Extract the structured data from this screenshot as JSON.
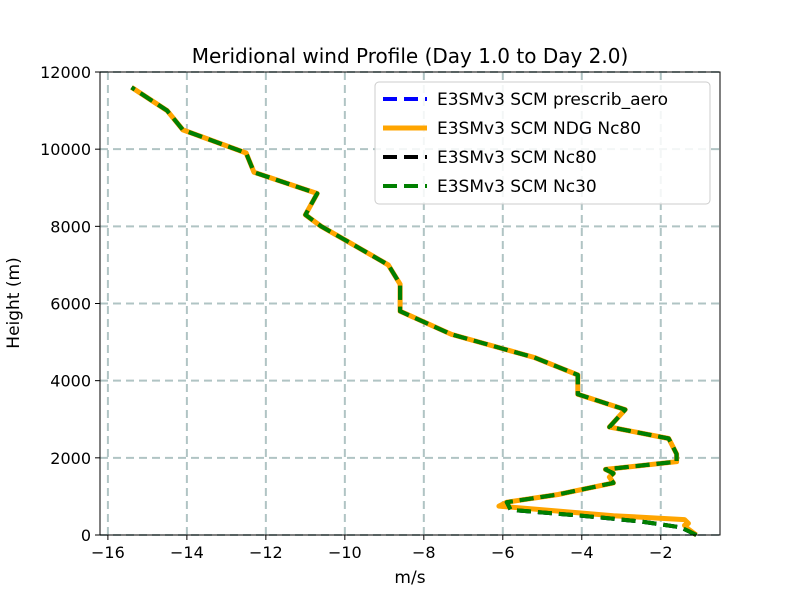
{
  "chart_data": {
    "type": "line",
    "title": "Meridional wind Profile (Day 1.0 to Day 2.0)",
    "xlabel": "m/s",
    "ylabel": "Height (m)",
    "xlim": [
      -16.2,
      -0.5
    ],
    "ylim": [
      0,
      12000
    ],
    "xticks": [
      -16,
      -14,
      -12,
      -10,
      -8,
      -6,
      -4,
      -2
    ],
    "yticks": [
      0,
      2000,
      4000,
      6000,
      8000,
      10000,
      12000
    ],
    "grid": true,
    "legend": "top-right",
    "series": [
      {
        "name": "E3SMv3 SCM prescrib_aero",
        "color": "#0000ff",
        "style": "dashed",
        "points": [
          [
            -1.1,
            0
          ],
          [
            -1.3,
            100
          ],
          [
            -1.5,
            200
          ],
          [
            -2.5,
            350
          ],
          [
            -4.0,
            500
          ],
          [
            -5.8,
            650
          ],
          [
            -5.9,
            850
          ],
          [
            -4.6,
            1050
          ],
          [
            -3.9,
            1200
          ],
          [
            -3.2,
            1350
          ],
          [
            -3.3,
            1500
          ],
          [
            -3.2,
            1600
          ],
          [
            -3.4,
            1700
          ],
          [
            -1.6,
            1900
          ],
          [
            -1.6,
            2100
          ],
          [
            -1.8,
            2500
          ],
          [
            -2.8,
            2700
          ],
          [
            -3.3,
            2800
          ],
          [
            -2.9,
            3250
          ],
          [
            -4.1,
            3650
          ],
          [
            -4.1,
            4150
          ],
          [
            -5.2,
            4600
          ],
          [
            -7.3,
            5200
          ],
          [
            -8.6,
            5800
          ],
          [
            -8.6,
            6500
          ],
          [
            -8.9,
            7000
          ],
          [
            -10.0,
            7650
          ],
          [
            -10.6,
            8000
          ],
          [
            -11.0,
            8300
          ],
          [
            -10.7,
            8850
          ],
          [
            -12.3,
            9400
          ],
          [
            -12.5,
            9900
          ],
          [
            -14.1,
            10500
          ],
          [
            -14.5,
            11000
          ],
          [
            -15.4,
            11600
          ]
        ]
      },
      {
        "name": "E3SMv3 SCM NDG Nc80",
        "color": "#ffa500",
        "style": "solid",
        "points": [
          [
            -1.1,
            0
          ],
          [
            -1.3,
            150
          ],
          [
            -1.4,
            250
          ],
          [
            -1.3,
            300
          ],
          [
            -1.4,
            400
          ],
          [
            -3.2,
            500
          ],
          [
            -6.1,
            750
          ],
          [
            -5.9,
            850
          ],
          [
            -4.6,
            1050
          ],
          [
            -3.9,
            1200
          ],
          [
            -3.2,
            1350
          ],
          [
            -3.3,
            1500
          ],
          [
            -3.2,
            1600
          ],
          [
            -3.4,
            1700
          ],
          [
            -1.6,
            1900
          ],
          [
            -1.6,
            2100
          ],
          [
            -1.8,
            2500
          ],
          [
            -2.8,
            2700
          ],
          [
            -3.3,
            2800
          ],
          [
            -2.9,
            3250
          ],
          [
            -4.1,
            3650
          ],
          [
            -4.1,
            4150
          ],
          [
            -5.2,
            4600
          ],
          [
            -7.3,
            5200
          ],
          [
            -8.6,
            5800
          ],
          [
            -8.6,
            6500
          ],
          [
            -8.9,
            7000
          ],
          [
            -10.0,
            7650
          ],
          [
            -10.6,
            8000
          ],
          [
            -11.0,
            8300
          ],
          [
            -10.7,
            8850
          ],
          [
            -12.3,
            9400
          ],
          [
            -12.5,
            9900
          ],
          [
            -14.1,
            10500
          ],
          [
            -14.5,
            11000
          ],
          [
            -15.4,
            11600
          ]
        ]
      },
      {
        "name": "E3SMv3 SCM Nc80",
        "color": "#000000",
        "style": "dashed",
        "points": [
          [
            -1.1,
            0
          ],
          [
            -1.3,
            100
          ],
          [
            -1.5,
            200
          ],
          [
            -2.5,
            350
          ],
          [
            -4.0,
            500
          ],
          [
            -5.8,
            650
          ],
          [
            -5.9,
            850
          ],
          [
            -4.6,
            1050
          ],
          [
            -3.9,
            1200
          ],
          [
            -3.2,
            1350
          ],
          [
            -3.3,
            1500
          ],
          [
            -3.2,
            1600
          ],
          [
            -3.4,
            1700
          ],
          [
            -1.6,
            1900
          ],
          [
            -1.6,
            2100
          ],
          [
            -1.8,
            2500
          ],
          [
            -2.8,
            2700
          ],
          [
            -3.3,
            2800
          ],
          [
            -2.9,
            3250
          ],
          [
            -4.1,
            3650
          ],
          [
            -4.1,
            4150
          ],
          [
            -5.2,
            4600
          ],
          [
            -7.3,
            5200
          ],
          [
            -8.6,
            5800
          ],
          [
            -8.6,
            6500
          ],
          [
            -8.9,
            7000
          ],
          [
            -10.0,
            7650
          ],
          [
            -10.6,
            8000
          ],
          [
            -11.0,
            8300
          ],
          [
            -10.7,
            8850
          ],
          [
            -12.3,
            9400
          ],
          [
            -12.5,
            9900
          ],
          [
            -14.1,
            10500
          ],
          [
            -14.5,
            11000
          ],
          [
            -15.4,
            11600
          ]
        ]
      },
      {
        "name": "E3SMv3 SCM Nc30",
        "color": "#008000",
        "style": "dashed",
        "points": [
          [
            -1.1,
            0
          ],
          [
            -1.3,
            100
          ],
          [
            -1.5,
            200
          ],
          [
            -2.5,
            350
          ],
          [
            -4.0,
            500
          ],
          [
            -5.8,
            650
          ],
          [
            -5.9,
            850
          ],
          [
            -4.6,
            1050
          ],
          [
            -3.9,
            1200
          ],
          [
            -3.2,
            1350
          ],
          [
            -3.3,
            1500
          ],
          [
            -3.2,
            1600
          ],
          [
            -3.4,
            1700
          ],
          [
            -1.6,
            1900
          ],
          [
            -1.6,
            2100
          ],
          [
            -1.8,
            2500
          ],
          [
            -2.8,
            2700
          ],
          [
            -3.3,
            2800
          ],
          [
            -2.9,
            3250
          ],
          [
            -4.1,
            3650
          ],
          [
            -4.1,
            4150
          ],
          [
            -5.2,
            4600
          ],
          [
            -7.3,
            5200
          ],
          [
            -8.6,
            5800
          ],
          [
            -8.6,
            6500
          ],
          [
            -8.9,
            7000
          ],
          [
            -10.0,
            7650
          ],
          [
            -10.6,
            8000
          ],
          [
            -11.0,
            8300
          ],
          [
            -10.7,
            8850
          ],
          [
            -12.3,
            9400
          ],
          [
            -12.5,
            9900
          ],
          [
            -14.1,
            10500
          ],
          [
            -14.5,
            11000
          ],
          [
            -15.4,
            11600
          ]
        ]
      }
    ]
  }
}
